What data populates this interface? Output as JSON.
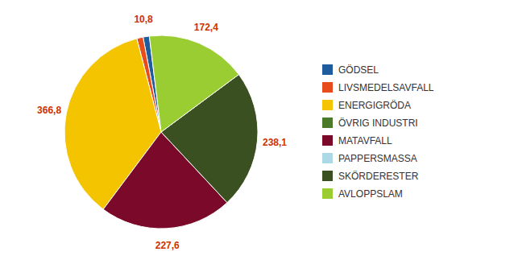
{
  "chart_data": {
    "type": "pie",
    "categories": [
      "GÖDSEL",
      "LIVSMEDELSAVFALL",
      "ENERGIGRÖDA",
      "ÖVRIG INDUSTRI",
      "MATAVFALL",
      "PAPPERSMASSA",
      "SKÖRDERESTER",
      "AVLOPPSLAM"
    ],
    "values": [
      10.8,
      10.8,
      366.8,
      null,
      227.6,
      null,
      238.1,
      172.4
    ],
    "value_labels": [
      "10,8",
      null,
      "366,8",
      null,
      "227,6",
      null,
      "238,1",
      "172,4"
    ],
    "colors": [
      "#1F5C9E",
      "#E84B1C",
      "#F5C400",
      "#4B7A2A",
      "#7B0A2A",
      "#ADD8E6",
      "#3A5020",
      "#9ACD32"
    ],
    "data_labels": true,
    "legend": "right"
  }
}
